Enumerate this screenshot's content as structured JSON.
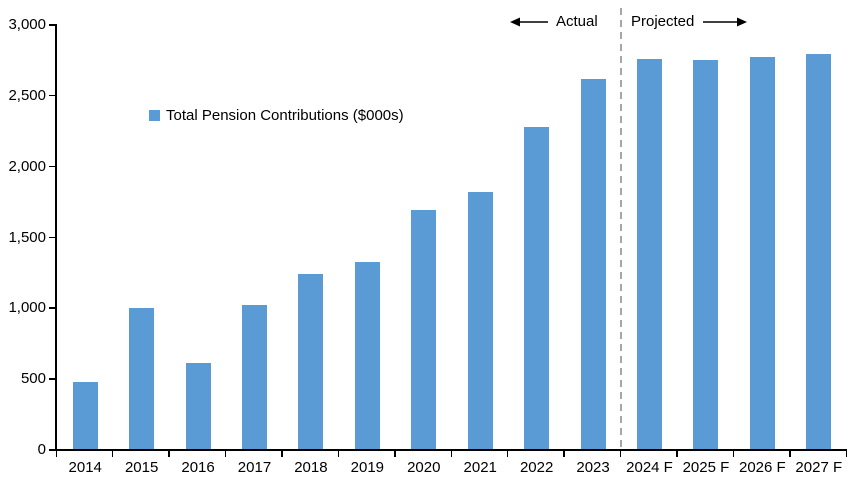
{
  "chart_data": {
    "type": "bar",
    "title": "",
    "xlabel": "",
    "ylabel": "",
    "categories": [
      "2014",
      "2015",
      "2016",
      "2017",
      "2018",
      "2019",
      "2020",
      "2021",
      "2022",
      "2023",
      "2024 F",
      "2025 F",
      "2026 F",
      "2027 F"
    ],
    "values": [
      470,
      995,
      610,
      1020,
      1235,
      1320,
      1685,
      1815,
      2275,
      2610,
      2750,
      2745,
      2765,
      2790
    ],
    "series_name": "Total Pension Contributions ($000s)",
    "ylim": [
      0,
      3000
    ],
    "y_tick_step": 500,
    "y_tick_labels": [
      "0",
      "500",
      "1,000",
      "1,500",
      "2,000",
      "2,500",
      "3,000"
    ],
    "grid": false,
    "legend_position": "inside-upper-left",
    "annotations": {
      "actual_label": "Actual",
      "projected_label": "Projected",
      "divider_after_category": "2023"
    },
    "colors": {
      "bar": "#5B9BD5",
      "divider": "#A6A6A6",
      "axis": "#000000",
      "text": "#000000"
    }
  }
}
